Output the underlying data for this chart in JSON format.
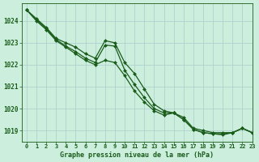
{
  "title": "Graphe pression niveau de la mer (hPa)",
  "bg_color": "#cceedd",
  "grid_color": "#aacccc",
  "line_color": "#1a5c1a",
  "marker_color": "#1a5c1a",
  "xlim": [
    -0.5,
    23
  ],
  "ylim": [
    1018.5,
    1024.8
  ],
  "yticks": [
    1019,
    1020,
    1021,
    1022,
    1023,
    1024
  ],
  "xticks": [
    0,
    1,
    2,
    3,
    4,
    5,
    6,
    7,
    8,
    9,
    10,
    11,
    12,
    13,
    14,
    15,
    16,
    17,
    18,
    19,
    20,
    21,
    22,
    23
  ],
  "series": [
    [
      1024.5,
      1024.1,
      1023.7,
      1023.2,
      1023.0,
      1022.8,
      1022.5,
      1022.3,
      1023.1,
      1023.0,
      1022.1,
      1021.6,
      1020.9,
      1020.2,
      1019.9,
      1019.8,
      1019.6,
      1019.1,
      1019.0,
      1018.9,
      1018.9,
      1018.9,
      1019.1,
      1018.9
    ],
    [
      1024.5,
      1024.05,
      1023.65,
      1023.15,
      1022.85,
      1022.6,
      1022.3,
      1022.1,
      1022.9,
      1022.85,
      1021.75,
      1021.1,
      1020.5,
      1020.0,
      1019.8,
      1019.8,
      1019.5,
      1019.05,
      1018.9,
      1018.85,
      1018.85,
      1018.9,
      1019.1,
      1018.9
    ],
    [
      1024.5,
      1024.0,
      1023.6,
      1023.1,
      1022.8,
      1022.5,
      1022.2,
      1022.0,
      1022.2,
      1022.1,
      1021.5,
      1020.8,
      1020.3,
      1019.9,
      1019.7,
      1019.8,
      1019.5,
      1019.05,
      1018.9,
      1018.85,
      1018.8,
      1018.9,
      1019.1,
      1018.9
    ]
  ]
}
